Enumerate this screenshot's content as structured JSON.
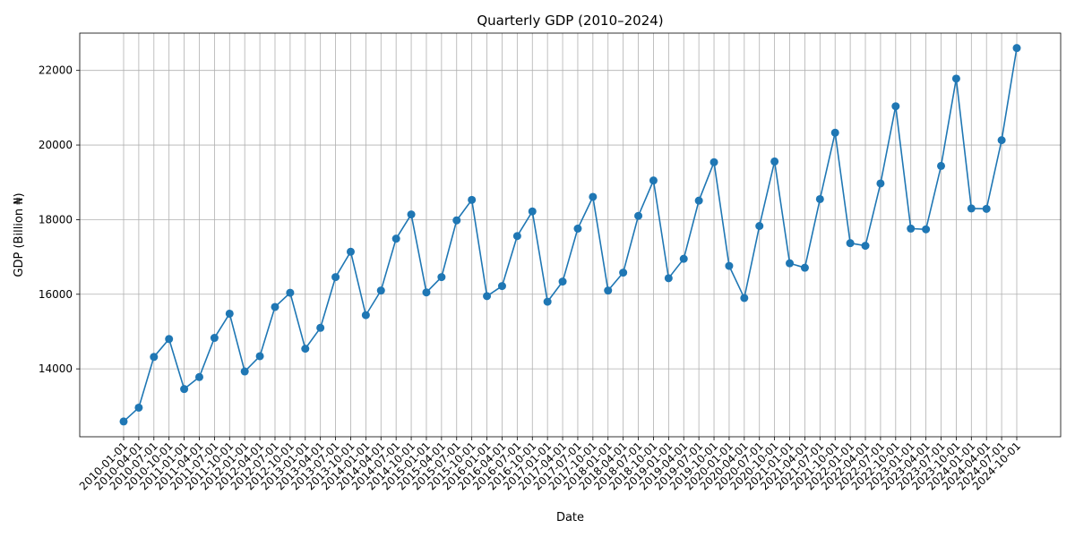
{
  "chart_data": {
    "type": "line",
    "title": "Quarterly GDP (2010–2024)",
    "xlabel": "Date",
    "ylabel": "GDP (Billion ₦)",
    "grid": true,
    "marker": "circle",
    "color": "#1f77b4",
    "ylim": [
      12180,
      23000
    ],
    "yticks": [
      14000,
      16000,
      18000,
      20000,
      22000
    ],
    "x": [
      "2010-01-01",
      "2010-04-01",
      "2010-07-01",
      "2010-10-01",
      "2011-01-01",
      "2011-04-01",
      "2011-07-01",
      "2011-10-01",
      "2012-01-01",
      "2012-04-01",
      "2012-07-01",
      "2012-10-01",
      "2013-01-01",
      "2013-04-01",
      "2013-07-01",
      "2013-10-01",
      "2014-01-01",
      "2014-04-01",
      "2014-07-01",
      "2014-10-01",
      "2015-01-01",
      "2015-04-01",
      "2015-07-01",
      "2015-10-01",
      "2016-01-01",
      "2016-04-01",
      "2016-07-01",
      "2016-10-01",
      "2017-01-01",
      "2017-04-01",
      "2017-07-01",
      "2017-10-01",
      "2018-01-01",
      "2018-04-01",
      "2018-07-01",
      "2018-10-01",
      "2019-01-01",
      "2019-04-01",
      "2019-07-01",
      "2019-10-01",
      "2020-01-01",
      "2020-04-01",
      "2020-07-01",
      "2020-10-01",
      "2021-01-01",
      "2021-04-01",
      "2021-07-01",
      "2021-10-01",
      "2022-01-01",
      "2022-04-01",
      "2022-07-01",
      "2022-10-01",
      "2023-01-01",
      "2023-04-01",
      "2023-07-01",
      "2023-10-01",
      "2024-01-01",
      "2024-04-01",
      "2024-07-01",
      "2024-10-01"
    ],
    "values": [
      12590,
      12960,
      14320,
      14800,
      13460,
      13780,
      14830,
      15480,
      13930,
      14340,
      15660,
      16040,
      14540,
      15100,
      16460,
      17140,
      15440,
      16100,
      17490,
      18140,
      16050,
      16460,
      17980,
      18530,
      15950,
      16220,
      17560,
      18220,
      15800,
      16340,
      17760,
      18610,
      16100,
      16580,
      18100,
      19050,
      16430,
      16950,
      18510,
      19540,
      16760,
      15900,
      17830,
      19560,
      16830,
      16710,
      18550,
      20330,
      17370,
      17300,
      18970,
      21040,
      17760,
      17740,
      19440,
      21780,
      18300,
      18290,
      20130,
      22600
    ]
  }
}
